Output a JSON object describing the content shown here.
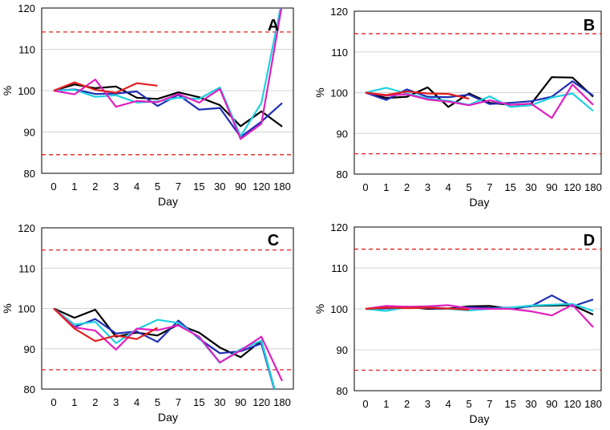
{
  "chart_data": [
    {
      "type": "line",
      "panel": "A",
      "categories": [
        "0",
        "1",
        "2",
        "3",
        "4",
        "5",
        "7",
        "15",
        "30",
        "90",
        "120",
        "180"
      ],
      "xlabel": "Day",
      "ylabel": "%",
      "ylim": [
        80,
        120
      ],
      "yticks": [
        "80",
        "90",
        "100",
        "110",
        "120"
      ],
      "reference_lines": [
        114.2,
        84.5
      ],
      "grid": true,
      "series": [
        {
          "name": "black",
          "color": "#000000",
          "values": [
            100,
            101.5,
            100.6,
            101.0,
            98.3,
            98.0,
            99.6,
            98.4,
            96.5,
            91.4,
            95.0,
            91.3
          ]
        },
        {
          "name": "blue",
          "color": "#1f2fb4",
          "values": [
            100,
            100.3,
            99.2,
            99.3,
            99.8,
            96.3,
            99.0,
            95.4,
            95.8,
            88.8,
            92.5,
            97.0
          ]
        },
        {
          "name": "cyan",
          "color": "#20d0e0",
          "values": [
            100,
            100.2,
            98.5,
            98.9,
            97.1,
            97.4,
            98.3,
            98.0,
            100.8,
            89.0,
            97.0,
            122.0
          ]
        },
        {
          "name": "magenta",
          "color": "#e020c0",
          "values": [
            100,
            99.1,
            102.7,
            96.1,
            97.5,
            97.2,
            99.2,
            97.1,
            100.4,
            88.3,
            92.0,
            121.0
          ]
        },
        {
          "name": "red",
          "color": "#e02020",
          "values": [
            100,
            102.0,
            100.2,
            99.5,
            101.8,
            101.2,
            null,
            null,
            null,
            null,
            null,
            null
          ]
        }
      ]
    },
    {
      "type": "line",
      "panel": "B",
      "categories": [
        "0",
        "1",
        "2",
        "3",
        "4",
        "5",
        "7",
        "15",
        "30",
        "90",
        "120",
        "180"
      ],
      "xlabel": "Day",
      "ylabel": "%",
      "ylim": [
        80,
        120
      ],
      "yticks": [
        "80",
        "90",
        "100",
        "110",
        "120"
      ],
      "reference_lines": [
        114.5,
        85.0
      ],
      "grid": true,
      "series": [
        {
          "name": "black",
          "color": "#000000",
          "values": [
            100,
            98.7,
            99.0,
            101.3,
            96.5,
            99.8,
            97.5,
            97.0,
            97.2,
            103.8,
            103.7,
            99.0
          ]
        },
        {
          "name": "blue",
          "color": "#1f2fb4",
          "values": [
            100,
            98.2,
            100.8,
            99.0,
            98.9,
            99.5,
            97.2,
            97.5,
            97.9,
            99.0,
            102.8,
            99.3
          ]
        },
        {
          "name": "cyan",
          "color": "#20d0e0",
          "values": [
            100,
            101.2,
            99.8,
            98.6,
            98.0,
            97.0,
            99.1,
            96.5,
            96.9,
            98.8,
            99.8,
            95.5
          ]
        },
        {
          "name": "magenta",
          "color": "#e020c0",
          "values": [
            100,
            99.3,
            99.6,
            98.3,
            97.8,
            96.9,
            98.1,
            97.0,
            97.3,
            93.8,
            102.0,
            97.0
          ]
        },
        {
          "name": "red",
          "color": "#e02020",
          "values": [
            100,
            99.4,
            100.3,
            99.8,
            99.7,
            98.5,
            null,
            null,
            null,
            null,
            null,
            null
          ]
        }
      ]
    },
    {
      "type": "line",
      "panel": "C",
      "categories": [
        "0",
        "1",
        "2",
        "3",
        "4",
        "5",
        "7",
        "15",
        "30",
        "90",
        "120",
        "180"
      ],
      "xlabel": "Day",
      "ylabel": "%",
      "ylim": [
        80,
        120
      ],
      "yticks": [
        "80",
        "90",
        "100",
        "110",
        "120"
      ],
      "reference_lines": [
        114.5,
        84.8
      ],
      "grid": true,
      "series": [
        {
          "name": "black",
          "color": "#000000",
          "values": [
            100,
            97.7,
            99.7,
            93.0,
            94.0,
            93.3,
            96.0,
            94.0,
            90.3,
            87.9,
            92.0,
            73.0
          ]
        },
        {
          "name": "blue",
          "color": "#1f2fb4",
          "values": [
            100,
            95.4,
            97.4,
            93.8,
            94.3,
            91.7,
            97.0,
            92.5,
            88.9,
            89.4,
            91.3,
            73.0
          ]
        },
        {
          "name": "cyan",
          "color": "#20d0e0",
          "values": [
            100,
            96.0,
            96.7,
            91.4,
            94.8,
            97.2,
            96.4,
            92.8,
            86.5,
            89.9,
            92.0,
            73.0
          ]
        },
        {
          "name": "magenta",
          "color": "#e020c0",
          "values": [
            100,
            95.3,
            94.5,
            89.8,
            95.0,
            94.6,
            95.8,
            93.0,
            86.6,
            89.6,
            93.0,
            82.0
          ]
        },
        {
          "name": "red",
          "color": "#e02020",
          "values": [
            100,
            95.0,
            91.9,
            93.3,
            92.4,
            95.2,
            null,
            null,
            null,
            null,
            null,
            null
          ]
        }
      ]
    },
    {
      "type": "line",
      "panel": "D",
      "categories": [
        "0",
        "1",
        "2",
        "3",
        "4",
        "5",
        "7",
        "15",
        "30",
        "90",
        "120",
        "180"
      ],
      "xlabel": "Day",
      "ylabel": "%",
      "ylim": [
        80,
        120
      ],
      "yticks": [
        "80",
        "90",
        "100",
        "110",
        "120"
      ],
      "reference_lines": [
        114.6,
        85.0
      ],
      "grid": true,
      "series": [
        {
          "name": "black",
          "color": "#000000",
          "values": [
            100,
            100.2,
            100.5,
            100.0,
            100.1,
            100.6,
            100.7,
            100.0,
            100.7,
            100.8,
            100.9,
            98.6
          ]
        },
        {
          "name": "blue",
          "color": "#1f2fb4",
          "values": [
            100,
            100.1,
            100.3,
            100.2,
            100.0,
            100.4,
            100.2,
            100.3,
            100.6,
            103.3,
            100.6,
            102.3
          ]
        },
        {
          "name": "cyan",
          "color": "#20d0e0",
          "values": [
            100,
            99.5,
            100.4,
            100.6,
            100.0,
            99.6,
            100.0,
            100.3,
            100.8,
            101.0,
            101.2,
            99.5
          ]
        },
        {
          "name": "magenta",
          "color": "#e020c0",
          "values": [
            100,
            100.7,
            100.5,
            100.6,
            100.9,
            100.1,
            100.0,
            100.0,
            99.4,
            98.4,
            101.0,
            95.5
          ]
        },
        {
          "name": "red",
          "color": "#e02020",
          "values": [
            100,
            100.3,
            100.2,
            100.3,
            100.1,
            99.8,
            null,
            null,
            null,
            null,
            null,
            null
          ]
        }
      ]
    }
  ]
}
